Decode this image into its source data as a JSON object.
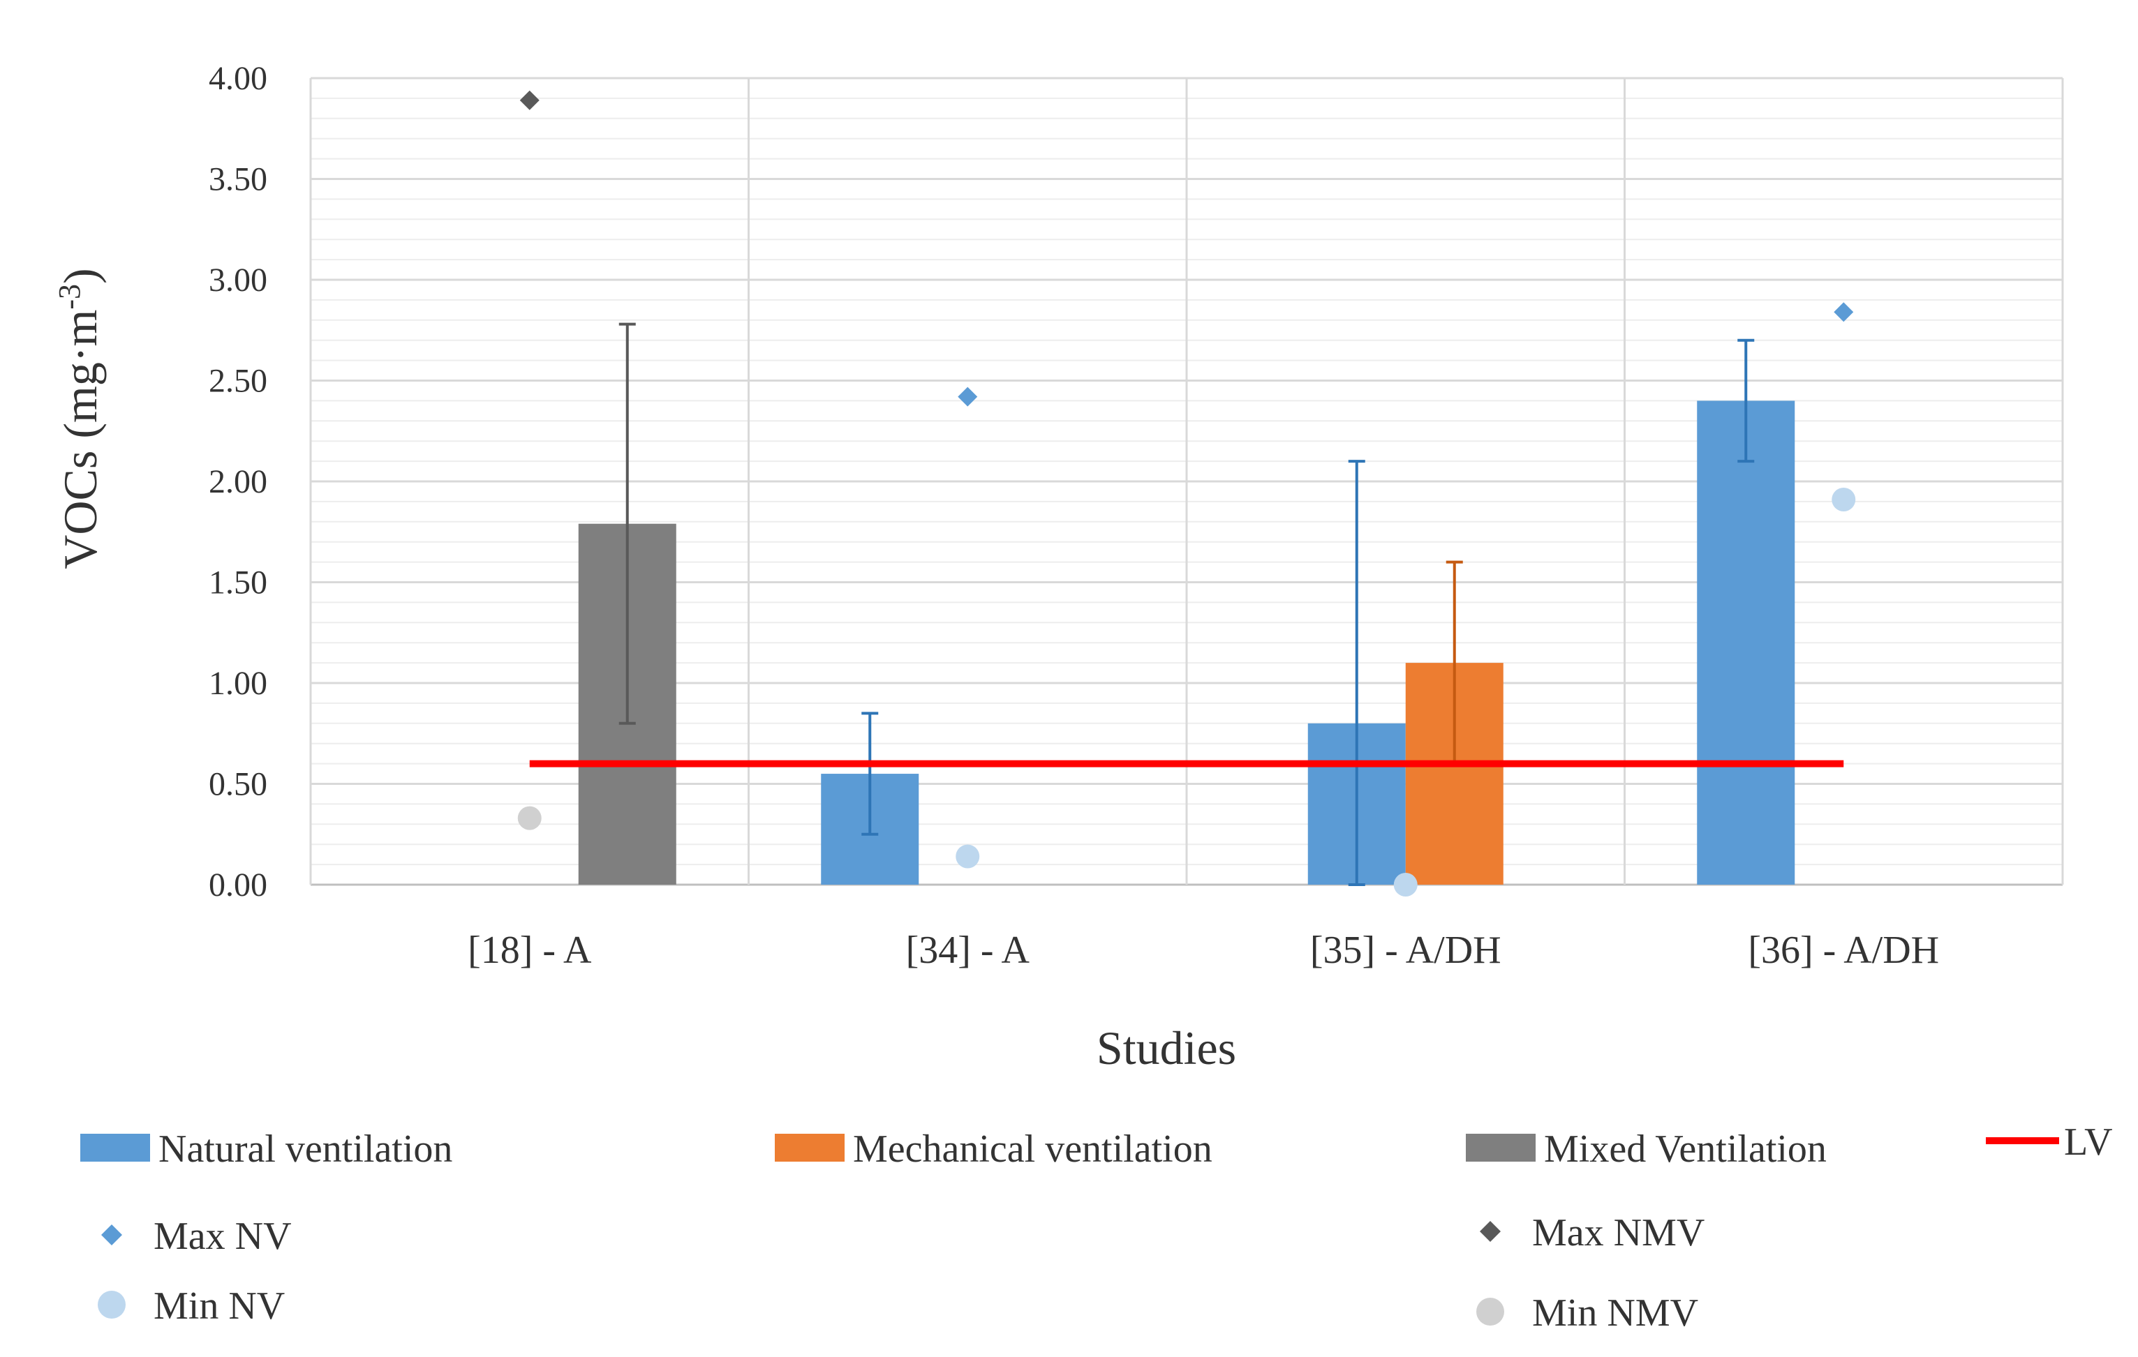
{
  "chart_data": {
    "type": "bar",
    "title": "",
    "xlabel": "Studies",
    "ylabel": "VOCs (mg·m",
    "ylabel_sup": "-3",
    "ylabel_close": ")",
    "ylim": [
      0,
      4
    ],
    "y_major_step": 0.5,
    "y_minor_step": 0.1,
    "categories": [
      "[18] - A",
      "[34] - A",
      "[35]  - A/DH",
      "[36] - A/DH"
    ],
    "series": [
      {
        "name": "Natural ventilation",
        "color": "#5B9BD5",
        "values": [
          null,
          0.55,
          0.8,
          2.4
        ],
        "error_low": [
          null,
          0.25,
          0.0,
          2.1
        ],
        "error_high": [
          null,
          0.85,
          2.1,
          2.7
        ]
      },
      {
        "name": "Mechanical ventilation",
        "color": "#ED7D31",
        "values": [
          null,
          null,
          1.1,
          null
        ],
        "error_low": [
          null,
          null,
          0.6,
          null
        ],
        "error_high": [
          null,
          null,
          1.6,
          null
        ]
      },
      {
        "name": "Mixed Ventilation",
        "color": "#7F7F7F",
        "values": [
          1.79,
          null,
          null,
          null
        ],
        "error_low": [
          0.8,
          null,
          null,
          null
        ],
        "error_high": [
          2.78,
          null,
          null,
          null
        ]
      }
    ],
    "markers": [
      {
        "name": "Max NV",
        "shape": "diamond",
        "color": "#5B9BD5",
        "values": [
          null,
          2.42,
          null,
          2.84
        ]
      },
      {
        "name": "Min NV",
        "shape": "circle",
        "color": "#BDD7EE",
        "values": [
          null,
          0.14,
          0.0,
          1.91
        ]
      },
      {
        "name": "Max NMV",
        "shape": "diamond",
        "color": "#595959",
        "values": [
          3.89,
          null,
          null,
          null
        ]
      },
      {
        "name": "Min NMV",
        "shape": "circle",
        "color": "#D0D0D0",
        "values": [
          0.33,
          null,
          null,
          null
        ]
      }
    ],
    "reference_line": {
      "name": "LV",
      "value": 0.6,
      "color": "#FF0000"
    },
    "grid": true,
    "legend_position": "bottom"
  }
}
